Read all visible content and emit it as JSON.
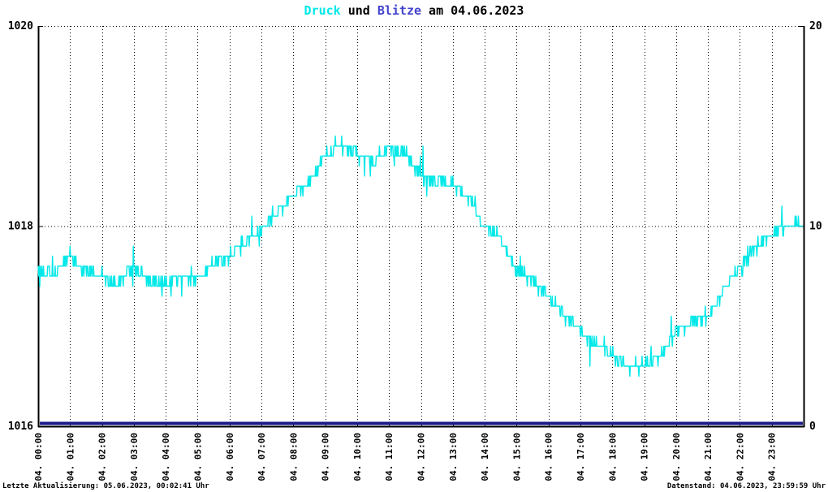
{
  "title": {
    "druck": "Druck",
    "und": " und ",
    "blitze": "Blitze",
    "date": " am 04.06.2023"
  },
  "footer": {
    "left": "Letzte Aktualisierung: 05.06.2023, 00:02:41 Uhr",
    "right": "Datenstand: 04.06.2023, 23:59:59 Uhr"
  },
  "colors": {
    "druck": "#00e8e8",
    "blitze_title": "#4444cc",
    "blitze_line": "#1b1b8a",
    "grid": "#000000",
    "frame": "#000000",
    "text": "#000000",
    "background": "#ffffff"
  },
  "chart_data": {
    "type": "line",
    "title": "Druck und Blitze am 04.06.2023",
    "grid": true,
    "x_axis": {
      "range_hours": [
        0,
        24
      ],
      "tick_labels": [
        "04. 00:00",
        "04. 01:00",
        "04. 02:00",
        "04. 03:00",
        "04. 04:00",
        "04. 05:00",
        "04. 06:00",
        "04. 07:00",
        "04. 08:00",
        "04. 09:00",
        "04. 10:00",
        "04. 11:00",
        "04. 12:00",
        "04. 13:00",
        "04. 14:00",
        "04. 15:00",
        "04. 16:00",
        "04. 17:00",
        "04. 18:00",
        "04. 19:00",
        "04. 20:00",
        "04. 21:00",
        "04. 22:00",
        "04. 23:00"
      ]
    },
    "y_left": {
      "range": [
        1016,
        1020
      ],
      "tick_values": [
        1016,
        1018,
        1020
      ],
      "tick_labels": [
        "1016",
        "1018",
        "1020"
      ]
    },
    "y_right": {
      "range": [
        0,
        20
      ],
      "tick_values": [
        0,
        10,
        20
      ],
      "tick_labels": [
        "0",
        "10",
        "20"
      ]
    },
    "series": [
      {
        "name": "Druck",
        "axis": "left",
        "color": "#00e8e8",
        "noise_amplitude": 0.07,
        "x_hours": [
          0,
          0.5,
          1,
          1.5,
          2,
          2.5,
          3,
          3.5,
          4,
          4.5,
          5,
          5.5,
          6,
          6.5,
          7,
          7.5,
          8,
          8.5,
          9,
          9.5,
          10,
          10.5,
          11,
          11.5,
          12,
          12.5,
          13,
          13.5,
          14,
          14.5,
          15,
          15.5,
          16,
          16.5,
          17,
          17.5,
          18,
          18.5,
          19,
          19.5,
          20,
          20.5,
          21,
          21.5,
          22,
          22.5,
          23,
          23.5,
          24
        ],
        "values": [
          1017.55,
          1017.5,
          1017.7,
          1017.55,
          1017.5,
          1017.42,
          1017.6,
          1017.45,
          1017.42,
          1017.5,
          1017.48,
          1017.62,
          1017.7,
          1017.85,
          1017.95,
          1018.15,
          1018.3,
          1018.45,
          1018.7,
          1018.8,
          1018.72,
          1018.65,
          1018.78,
          1018.72,
          1018.5,
          1018.45,
          1018.42,
          1018.28,
          1018.0,
          1017.88,
          1017.55,
          1017.45,
          1017.3,
          1017.1,
          1016.95,
          1016.8,
          1016.7,
          1016.58,
          1016.62,
          1016.68,
          1016.95,
          1017.02,
          1017.1,
          1017.35,
          1017.6,
          1017.8,
          1017.92,
          1018.0,
          1018.02
        ]
      },
      {
        "name": "Blitze",
        "axis": "right",
        "color": "#1b1b8a",
        "x_hours": [
          0,
          24
        ],
        "values": [
          0,
          0
        ]
      }
    ]
  }
}
